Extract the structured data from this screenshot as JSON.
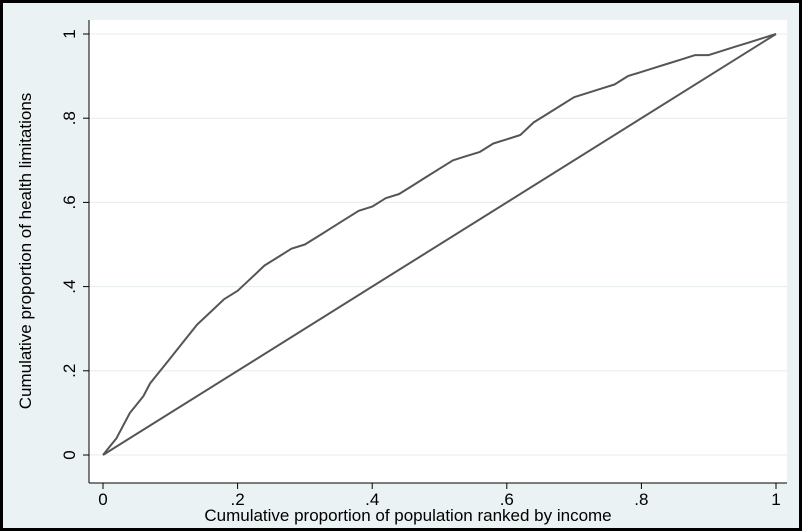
{
  "chart_data": {
    "type": "line",
    "title": "",
    "xlabel": "Cumulative  proportion of population ranked by income",
    "ylabel": "Cumulative proportion of health limitations",
    "xlim": [
      0,
      1
    ],
    "ylim": [
      0,
      1
    ],
    "x_ticks": [
      0,
      0.2,
      0.4,
      0.6,
      0.8,
      1
    ],
    "x_tick_labels": [
      "0",
      ".2",
      ".4",
      ".6",
      ".8",
      "1"
    ],
    "y_ticks": [
      0,
      0.2,
      0.4,
      0.6,
      0.8,
      1
    ],
    "y_tick_labels": [
      "0",
      ".2",
      ".4",
      ".6",
      ".8",
      "1"
    ],
    "grid": "horizontal",
    "legend": "none",
    "colors": {
      "line": "#555555",
      "background": "#eaf2f3",
      "plot_bg": "#ffffff",
      "grid": "#e6ecee"
    },
    "series": [
      {
        "x": [
          0,
          0.01,
          0.02,
          0.03,
          0.04,
          0.05,
          0.06,
          0.07,
          0.08,
          0.09,
          0.1,
          0.12,
          0.14,
          0.16,
          0.18,
          0.2,
          0.22,
          0.24,
          0.26,
          0.28,
          0.3,
          0.32,
          0.34,
          0.36,
          0.38,
          0.4,
          0.42,
          0.44,
          0.46,
          0.48,
          0.5,
          0.52,
          0.54,
          0.56,
          0.58,
          0.6,
          0.62,
          0.64,
          0.66,
          0.68,
          0.7,
          0.72,
          0.74,
          0.76,
          0.78,
          0.8,
          0.82,
          0.84,
          0.86,
          0.88,
          0.9,
          0.92,
          0.94,
          0.96,
          0.98,
          1.0
        ],
        "y": [
          0,
          0.02,
          0.04,
          0.07,
          0.1,
          0.12,
          0.14,
          0.17,
          0.19,
          0.21,
          0.23,
          0.27,
          0.31,
          0.34,
          0.37,
          0.39,
          0.42,
          0.45,
          0.47,
          0.49,
          0.5,
          0.52,
          0.54,
          0.56,
          0.58,
          0.59,
          0.61,
          0.62,
          0.64,
          0.66,
          0.68,
          0.7,
          0.71,
          0.72,
          0.74,
          0.75,
          0.76,
          0.79,
          0.81,
          0.83,
          0.85,
          0.86,
          0.87,
          0.88,
          0.9,
          0.91,
          0.92,
          0.93,
          0.94,
          0.95,
          0.95,
          0.96,
          0.97,
          0.98,
          0.99,
          1.0
        ]
      },
      {
        "x": [
          0,
          1
        ],
        "y": [
          0,
          1
        ]
      }
    ]
  }
}
